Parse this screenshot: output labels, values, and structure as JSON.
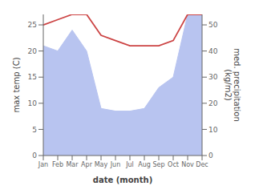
{
  "chart_data": {
    "type": "line",
    "categories": [
      "Jan",
      "Feb",
      "Mar",
      "Apr",
      "May",
      "Jun",
      "Jul",
      "Aug",
      "Sep",
      "Oct",
      "Nov",
      "Dec"
    ],
    "xlabel": "date (month)",
    "ylabel": "max temp (C)",
    "y2label": "med. precipitation\n(kg/m2)",
    "ylim": [
      0,
      27
    ],
    "yticks": [
      0,
      5,
      10,
      15,
      20,
      25
    ],
    "y2lim": [
      0,
      54
    ],
    "y2ticks": [
      0,
      10,
      20,
      30,
      40,
      50
    ],
    "grid": false,
    "series": [
      {
        "type": "area",
        "axis": "y2",
        "color": "#b8c4f0",
        "values": [
          42,
          40,
          48,
          40,
          18,
          17,
          17,
          18,
          26,
          30,
          54,
          54
        ]
      },
      {
        "type": "line",
        "color": "#cc4444",
        "values": [
          25,
          26,
          27,
          27,
          23,
          22,
          21,
          21,
          21,
          22,
          27,
          27
        ]
      }
    ]
  }
}
